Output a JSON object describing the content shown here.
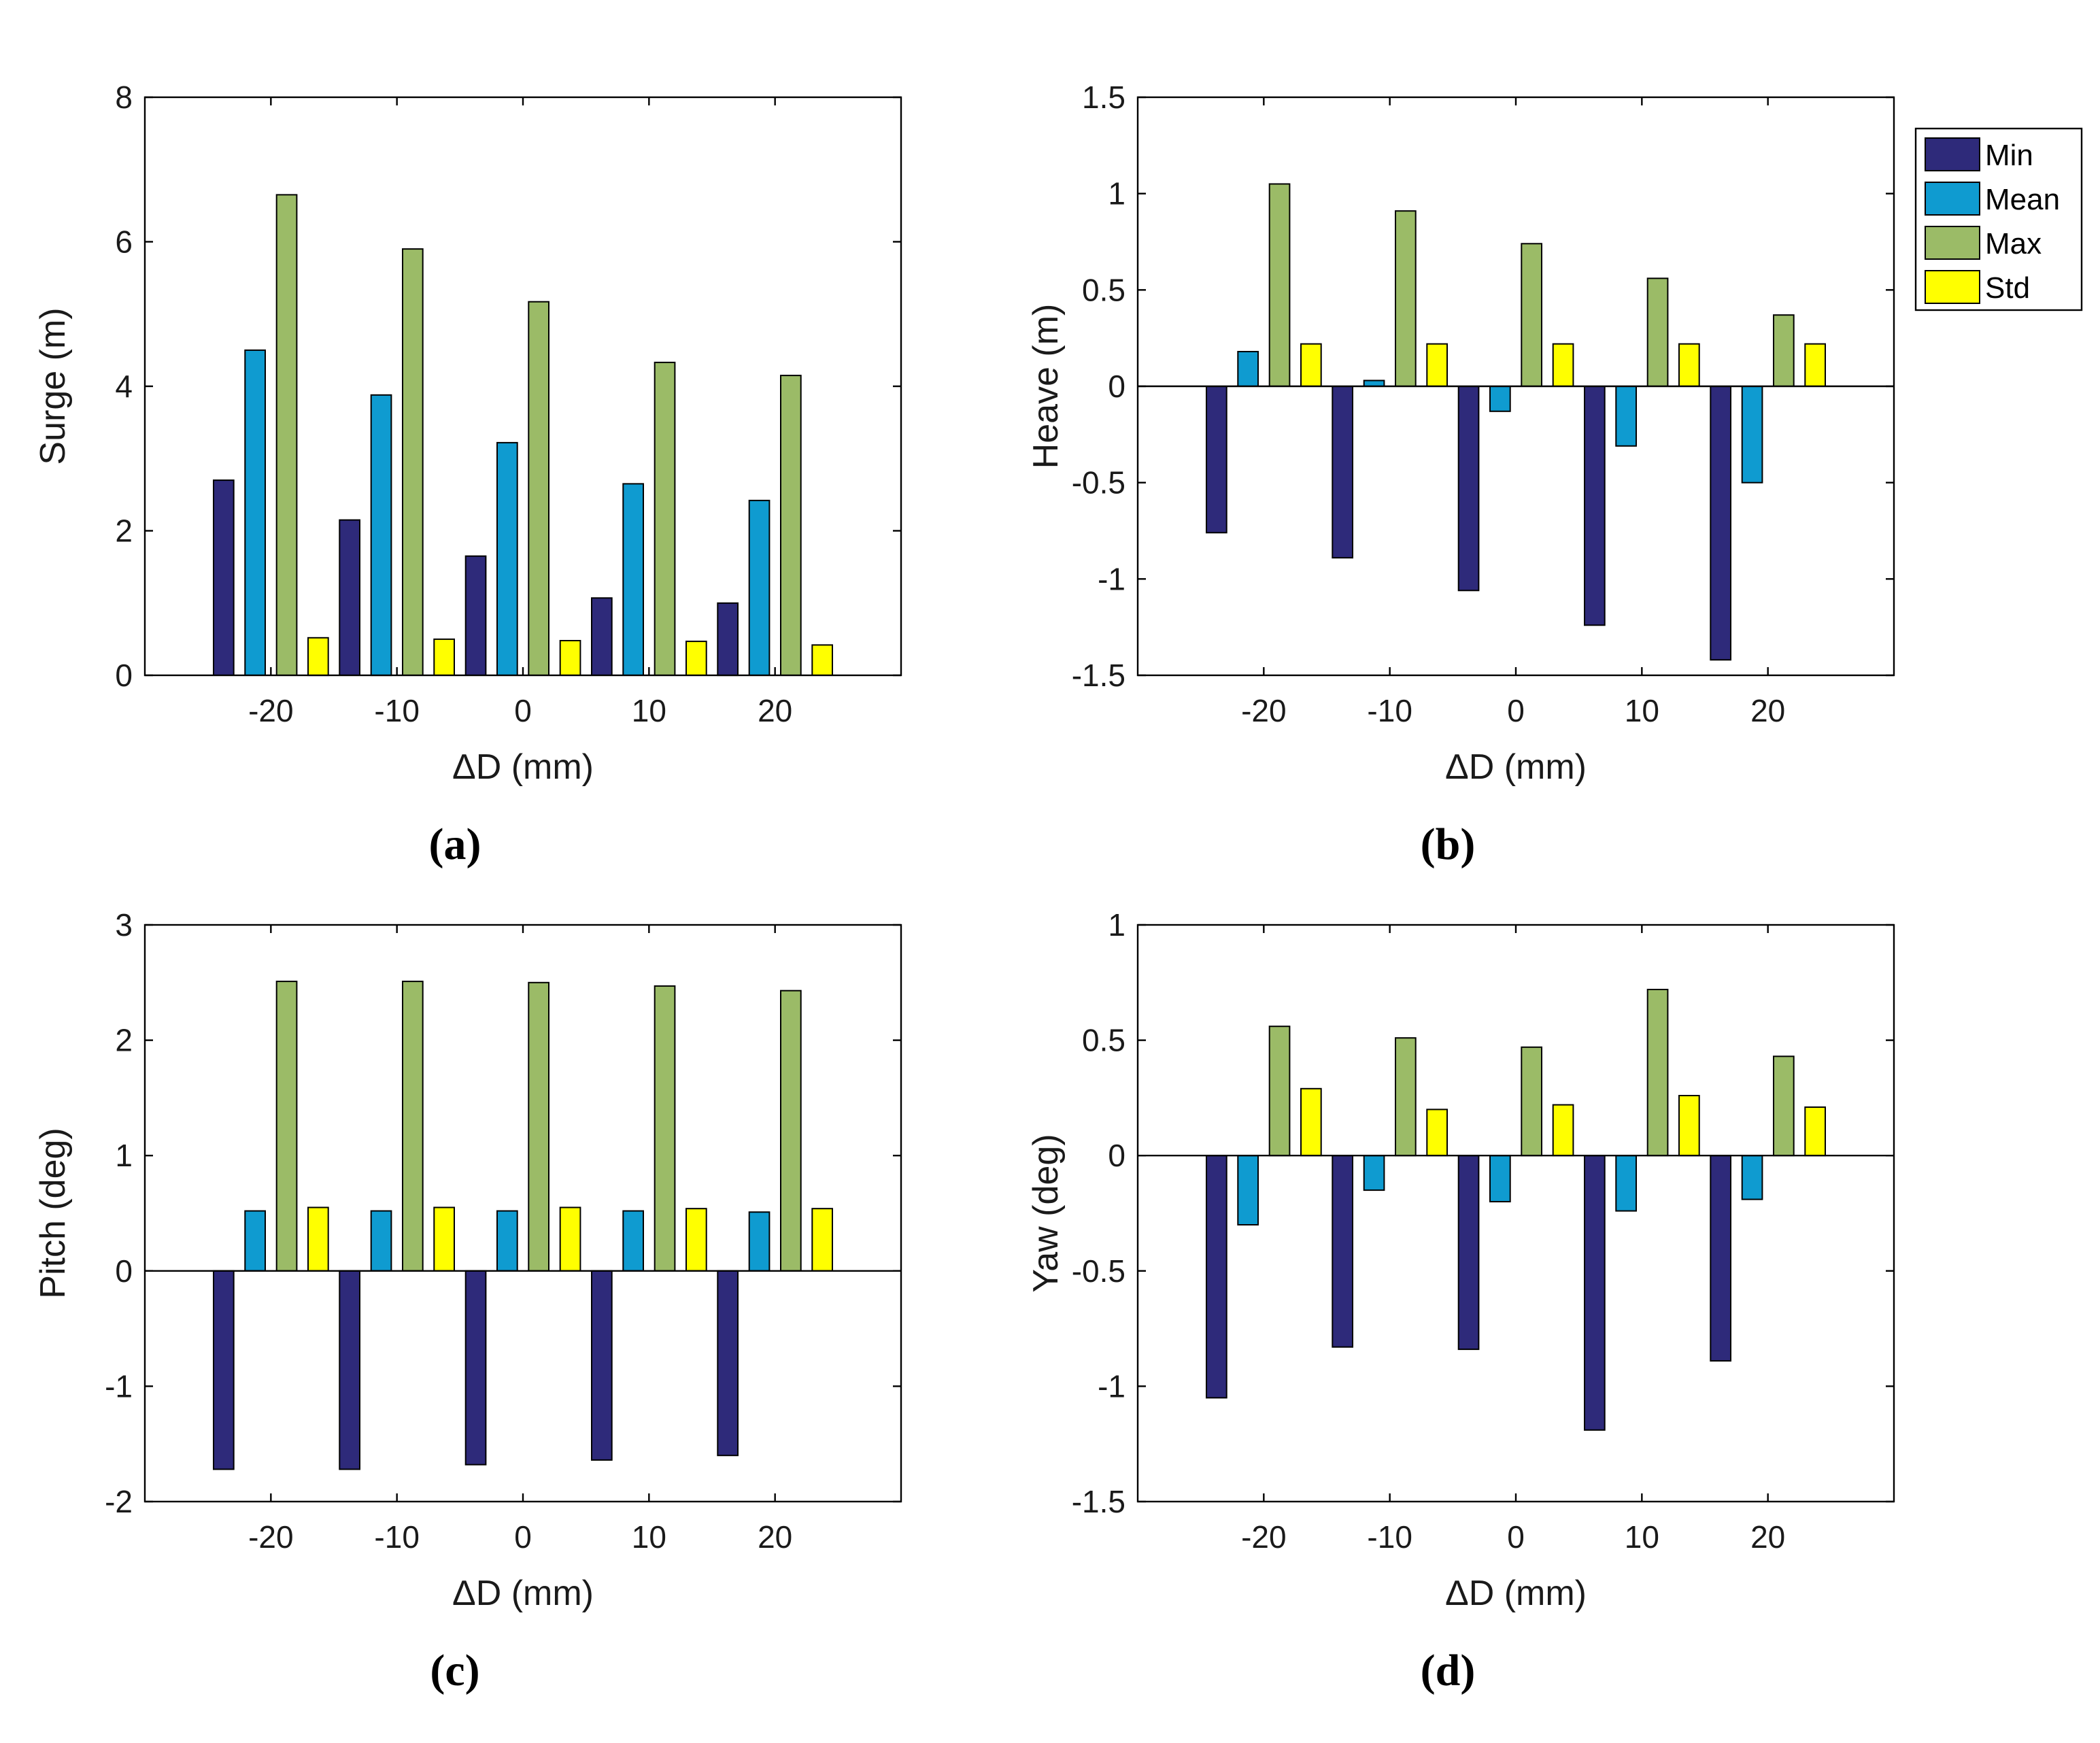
{
  "legend": {
    "items": [
      {
        "label": "Min",
        "color": "#2e2a7a"
      },
      {
        "label": "Mean",
        "color": "#0f9bd0"
      },
      {
        "label": "Max",
        "color": "#9bbb67"
      },
      {
        "label": "Std",
        "color": "#ffff00"
      }
    ]
  },
  "chart_data": [
    {
      "type": "bar",
      "panel": "(a)",
      "categories": [
        "-20",
        "-10",
        "0",
        "10",
        "20"
      ],
      "xlabel": "ΔD (mm)",
      "ylabel": "Surge (m)",
      "ylim": [
        0,
        8
      ],
      "yticks": [
        0,
        2,
        4,
        6,
        8
      ],
      "series": [
        {
          "name": "Min",
          "values": [
            2.7,
            2.15,
            1.65,
            1.07,
            1.0
          ]
        },
        {
          "name": "Mean",
          "values": [
            4.5,
            3.88,
            3.22,
            2.65,
            2.42
          ]
        },
        {
          "name": "Max",
          "values": [
            6.65,
            5.9,
            5.17,
            4.33,
            4.15
          ]
        },
        {
          "name": "Std",
          "values": [
            0.52,
            0.5,
            0.48,
            0.47,
            0.42
          ]
        }
      ]
    },
    {
      "type": "bar",
      "panel": "(b)",
      "categories": [
        "-20",
        "-10",
        "0",
        "10",
        "20"
      ],
      "xlabel": "ΔD (mm)",
      "ylabel": "Heave (m)",
      "ylim": [
        -1.5,
        1.5
      ],
      "yticks": [
        -1.5,
        -1,
        -0.5,
        0,
        0.5,
        1,
        1.5
      ],
      "series": [
        {
          "name": "Min",
          "values": [
            -0.76,
            -0.89,
            -1.06,
            -1.24,
            -1.42
          ]
        },
        {
          "name": "Mean",
          "values": [
            0.18,
            0.03,
            -0.13,
            -0.31,
            -0.5
          ]
        },
        {
          "name": "Max",
          "values": [
            1.05,
            0.91,
            0.74,
            0.56,
            0.37
          ]
        },
        {
          "name": "Std",
          "values": [
            0.22,
            0.22,
            0.22,
            0.22,
            0.22
          ]
        }
      ]
    },
    {
      "type": "bar",
      "panel": "(c)",
      "categories": [
        "-20",
        "-10",
        "0",
        "10",
        "20"
      ],
      "xlabel": "ΔD (mm)",
      "ylabel": "Pitch (deg)",
      "ylim": [
        -2,
        3
      ],
      "yticks": [
        -2,
        -1,
        0,
        1,
        2,
        3
      ],
      "series": [
        {
          "name": "Min",
          "values": [
            -1.72,
            -1.72,
            -1.68,
            -1.64,
            -1.6
          ]
        },
        {
          "name": "Mean",
          "values": [
            0.52,
            0.52,
            0.52,
            0.52,
            0.51
          ]
        },
        {
          "name": "Max",
          "values": [
            2.51,
            2.51,
            2.5,
            2.47,
            2.43
          ]
        },
        {
          "name": "Std",
          "values": [
            0.55,
            0.55,
            0.55,
            0.54,
            0.54
          ]
        }
      ]
    },
    {
      "type": "bar",
      "panel": "(d)",
      "categories": [
        "-20",
        "-10",
        "0",
        "10",
        "20"
      ],
      "xlabel": "ΔD (mm)",
      "ylabel": "Yaw (deg)",
      "ylim": [
        -1.5,
        1
      ],
      "yticks": [
        -1.5,
        -1,
        -0.5,
        0,
        0.5,
        1
      ],
      "series": [
        {
          "name": "Min",
          "values": [
            -1.05,
            -0.83,
            -0.84,
            -1.19,
            -0.89
          ]
        },
        {
          "name": "Mean",
          "values": [
            -0.3,
            -0.15,
            -0.2,
            -0.24,
            -0.19
          ]
        },
        {
          "name": "Max",
          "values": [
            0.56,
            0.51,
            0.47,
            0.72,
            0.43
          ]
        },
        {
          "name": "Std",
          "values": [
            0.29,
            0.2,
            0.22,
            0.26,
            0.21
          ]
        }
      ]
    }
  ]
}
